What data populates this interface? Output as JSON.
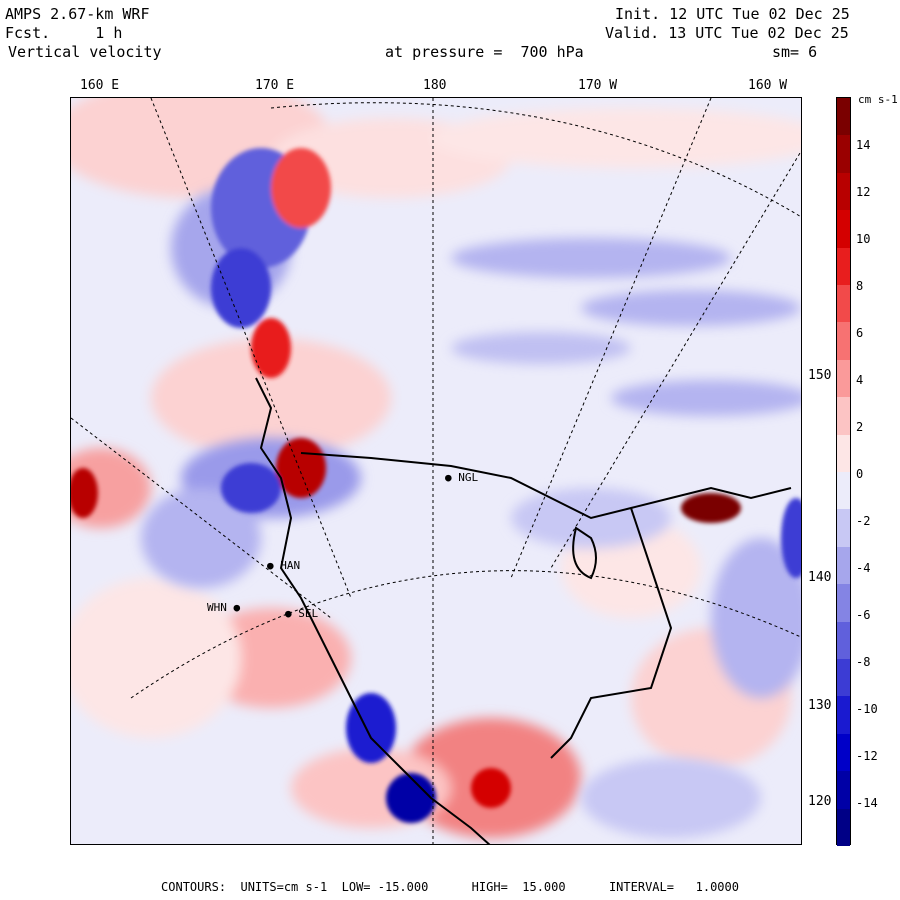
{
  "header": {
    "model": "AMPS 2.67-km WRF",
    "fcst": "Fcst.     1 h",
    "field": "Vertical velocity",
    "init": "Init. 12 UTC Tue 02 Dec 25",
    "valid": "Valid. 13 UTC Tue 02 Dec 25",
    "pressure": "at pressure =  700 hPa",
    "smooth": "sm= 6"
  },
  "longitude_labels": [
    "160 E",
    "170 E",
    "180",
    "170 W",
    "160 W"
  ],
  "latitude_labels": [
    "150 W",
    "140 W",
    "130 W",
    "120 W"
  ],
  "colorbar": {
    "units": "cm s-1",
    "tick_labels": [
      "14",
      "12",
      "10",
      "8",
      "6",
      "4",
      "2",
      "0",
      "-2",
      "-4",
      "-6",
      "-8",
      "-10",
      "-12",
      "-14"
    ],
    "colors": [
      "#7a0000",
      "#9a0000",
      "#b80000",
      "#d40000",
      "#e81e1e",
      "#f24a4a",
      "#f77272",
      "#fa9a9a",
      "#fcc4c4",
      "#fde6e6",
      "#ececfa",
      "#c8c8f4",
      "#a6a6ec",
      "#8484e4",
      "#6060dc",
      "#3c3cd4",
      "#1a1ad0",
      "#0000c8",
      "#0000a6",
      "#000086"
    ]
  },
  "stations": [
    {
      "name": "NGL"
    },
    {
      "name": "HAN"
    },
    {
      "name": "WHN"
    },
    {
      "name": "SEL"
    }
  ],
  "footer": "CONTOURS:  UNITS=cm s-1  LOW= -15.000      HIGH=  15.000      INTERVAL=   1.0000"
}
